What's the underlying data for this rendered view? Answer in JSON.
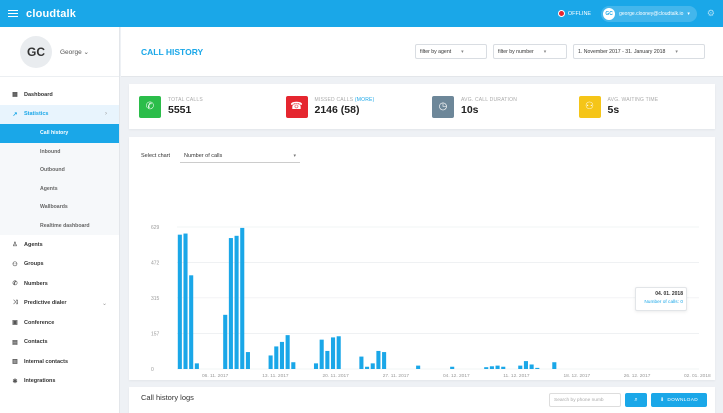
{
  "topbar": {
    "brand": "cloudtalk",
    "status": "OFFLINE",
    "user_initials": "GC",
    "user_email": "george.clooney@cloudtalk.io"
  },
  "profile": {
    "initials": "GC",
    "name": "George"
  },
  "nav": {
    "dashboard": "Dashboard",
    "statistics": "Statistics",
    "sub": [
      "Call history",
      "Inbound",
      "Outbound",
      "Agents",
      "Wallboards",
      "Realtime dashboard"
    ],
    "items": [
      "Agents",
      "Groups",
      "Numbers",
      "Predictive dialer",
      "Conference",
      "Contacts",
      "Internal contacts",
      "Integrations"
    ]
  },
  "header": {
    "title": "CALL HISTORY",
    "filter_agent": "filter by agent",
    "filter_number": "filter by number",
    "date_range": "1. November 2017 - 31. January 2018"
  },
  "stats": [
    {
      "label": "TOTAL CALLS",
      "value": "5551",
      "color": "#2bbd4a",
      "icon": "phone-icon"
    },
    {
      "label": "MISSED CALLS",
      "more": "(MORE)",
      "value": "2146 (58)",
      "color": "#e5262f",
      "icon": "missed-call-icon"
    },
    {
      "label": "AVG. CALL DURATION",
      "value": "10s",
      "color": "#6d8799",
      "icon": "clock-icon"
    },
    {
      "label": "AVG. WAITING TIME",
      "value": "5s",
      "color": "#f5c518",
      "icon": "group-icon"
    }
  ],
  "chart_controls": {
    "label": "Select chart",
    "selected": "Number of calls"
  },
  "chart_data": {
    "type": "bar",
    "ylim": [
      0,
      629
    ],
    "yticks": [
      0,
      157,
      315,
      472,
      629
    ],
    "xtick_labels": [
      "06. 11. 2017",
      "13. 11. 2017",
      "20. 11. 2017",
      "27. 11. 2017",
      "04. 12. 2017",
      "11. 12. 2017",
      "18. 12. 2017",
      "26. 12. 2017",
      "02. 01. 2018"
    ],
    "values": [
      595,
      600,
      415,
      25,
      0,
      0,
      0,
      0,
      240,
      580,
      590,
      625,
      75,
      0,
      0,
      0,
      60,
      100,
      120,
      150,
      30,
      0,
      0,
      0,
      25,
      130,
      80,
      140,
      145,
      0,
      0,
      0,
      55,
      10,
      25,
      80,
      75,
      0,
      0,
      0,
      0,
      0,
      15,
      0,
      0,
      0,
      0,
      0,
      10,
      0,
      0,
      0,
      0,
      0,
      8,
      12,
      15,
      10,
      0,
      0,
      15,
      35,
      20,
      5,
      0,
      0,
      30,
      0,
      0,
      0,
      0,
      0,
      0,
      0,
      0,
      0,
      0,
      0,
      0,
      0,
      0,
      0,
      0,
      0,
      0,
      0,
      0,
      0,
      0,
      0,
      0,
      0
    ],
    "color": "#1aa7e8",
    "tooltip": {
      "title": "04. 01. 2018",
      "series": "Number of calls",
      "value": "0"
    }
  },
  "logs": {
    "title": "Call history logs",
    "search_placeholder": "Search by phone numb",
    "download": "DOWNLOAD"
  }
}
